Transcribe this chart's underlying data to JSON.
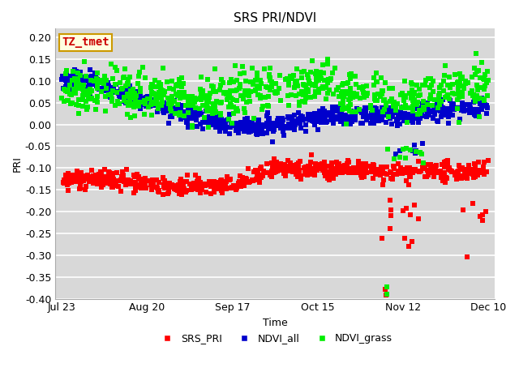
{
  "title": "SRS PRI/NDVI",
  "xlabel": "Time",
  "ylabel": "PRI",
  "ylim": [
    -0.4,
    0.22
  ],
  "yticks": [
    -0.4,
    -0.35,
    -0.3,
    -0.25,
    -0.2,
    -0.15,
    -0.1,
    -0.05,
    0.0,
    0.05,
    0.1,
    0.15,
    0.2
  ],
  "xtick_labels": [
    "Jul 23",
    "Aug 20",
    "Sep 17",
    "Oct 15",
    "Nov 12",
    "Dec 10"
  ],
  "annotation_text": "TZ_tmet",
  "annotation_color": "#cc0000",
  "annotation_bg": "#ffffe0",
  "annotation_border": "#cc9900",
  "colors": {
    "SRS_PRI": "#ff0000",
    "NDVI_all": "#0000cc",
    "NDVI_grass": "#00ee00"
  },
  "legend_labels": [
    "SRS_PRI",
    "NDVI_all",
    "NDVI_grass"
  ],
  "fig_bg_color": "#ffffff",
  "plot_bg_color": "#d8d8d8",
  "marker_size": 16,
  "seed": 42
}
